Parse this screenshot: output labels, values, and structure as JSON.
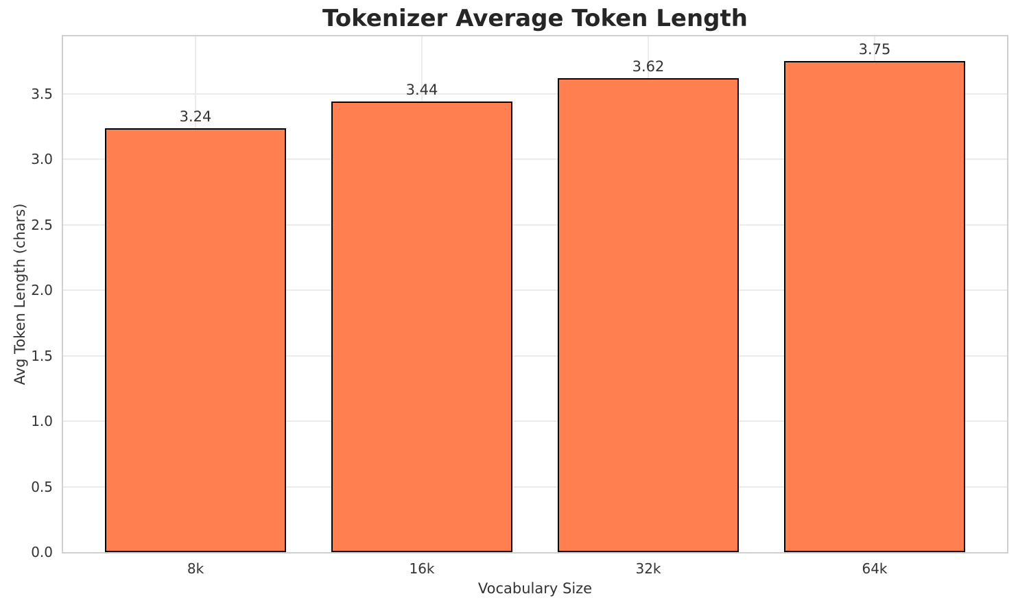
{
  "chart_data": {
    "type": "bar",
    "title": "Tokenizer Average Token Length",
    "xlabel": "Vocabulary Size",
    "ylabel": "Avg Token Length (chars)",
    "categories": [
      "8k",
      "16k",
      "32k",
      "64k"
    ],
    "values": [
      3.24,
      3.44,
      3.62,
      3.75
    ],
    "bar_value_labels": [
      "3.24",
      "3.44",
      "3.62",
      "3.75"
    ],
    "yticks": [
      0.0,
      0.5,
      1.0,
      1.5,
      2.0,
      2.5,
      3.0,
      3.5
    ],
    "ytick_labels": [
      "0.0",
      "0.5",
      "1.0",
      "1.5",
      "2.0",
      "2.5",
      "3.0",
      "3.5"
    ],
    "ylim": [
      0,
      3.94
    ],
    "grid": "both",
    "legend_position": "none",
    "colors": {
      "background": "#ffffff",
      "bar_fill": "#FF7F50",
      "bar_edge": "#000000",
      "gridline": "#ebebeb",
      "spine": "#d0d0d0",
      "tick_text": "#333333",
      "title_text": "#262626"
    }
  }
}
